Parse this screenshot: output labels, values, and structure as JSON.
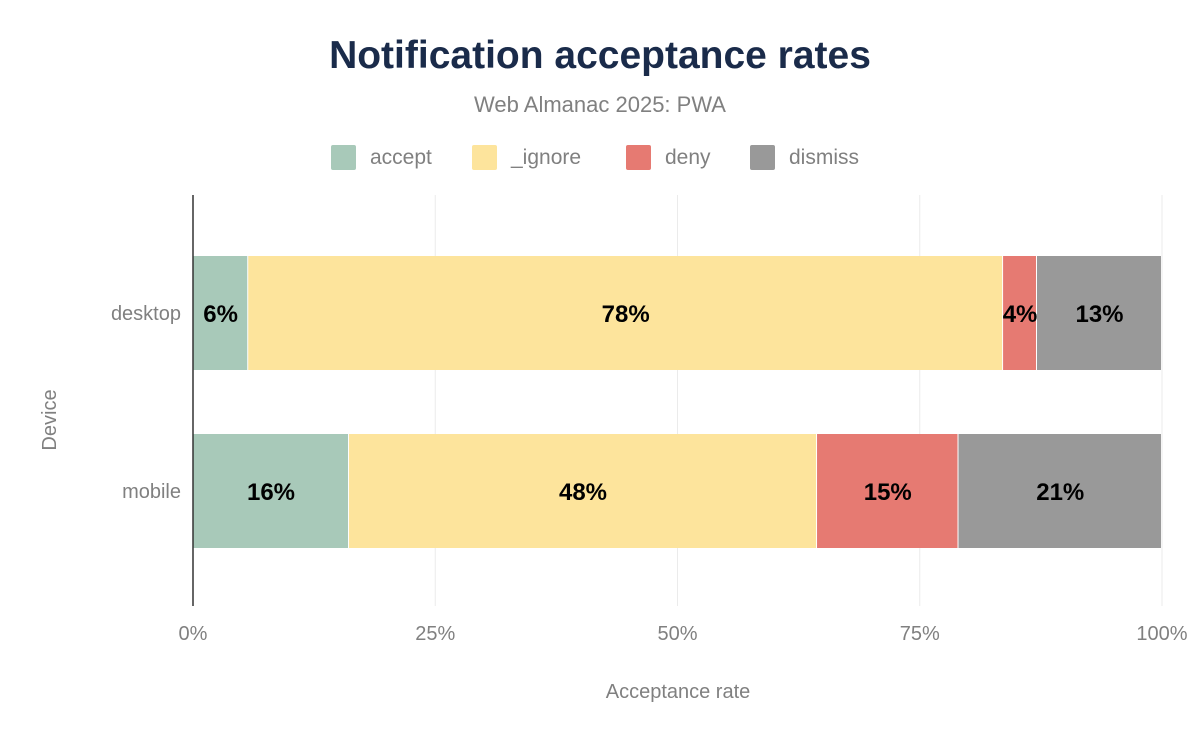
{
  "chart_data": {
    "type": "bar",
    "orientation": "horizontal",
    "stacked": true,
    "title": "Notification acceptance rates",
    "subtitle": "Web Almanac 2025: PWA",
    "xlabel": "Acceptance rate",
    "ylabel": "Device",
    "xlim": [
      0,
      100
    ],
    "xticks": [
      "0%",
      "25%",
      "50%",
      "75%",
      "100%"
    ],
    "xtick_values": [
      0,
      25,
      50,
      75,
      100
    ],
    "grid": true,
    "legend_position": "top",
    "categories": [
      "desktop",
      "mobile"
    ],
    "series": [
      {
        "name": "accept",
        "color": "#a8c9b9",
        "values": [
          5.7,
          16.1
        ],
        "labels": [
          "6%",
          "16%"
        ]
      },
      {
        "name": "_ignore",
        "color": "#fde49c",
        "values": [
          77.9,
          48.3
        ],
        "labels": [
          "78%",
          "48%"
        ]
      },
      {
        "name": "deny",
        "color": "#e67a72",
        "values": [
          3.5,
          14.6
        ],
        "labels": [
          "4%",
          "15%"
        ]
      },
      {
        "name": "dismiss",
        "color": "#999999",
        "values": [
          12.9,
          21.0
        ],
        "labels": [
          "13%",
          "21%"
        ]
      }
    ]
  }
}
